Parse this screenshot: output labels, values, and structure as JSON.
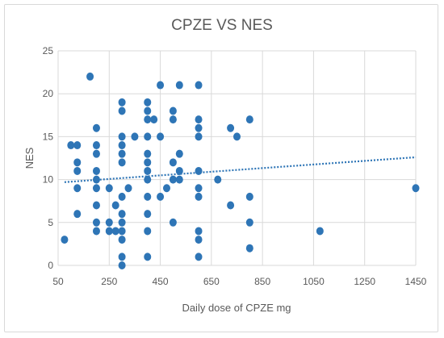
{
  "chart_data": {
    "type": "scatter",
    "title": "CPZE VS NES",
    "xlabel": "Daily dose of CPZE mg",
    "ylabel": "NES",
    "x_ticks": [
      50,
      250,
      450,
      650,
      850,
      1050,
      1250,
      1450
    ],
    "y_ticks": [
      0,
      5,
      10,
      15,
      20,
      25
    ],
    "xlim": [
      50,
      1450
    ],
    "ylim": [
      0,
      25
    ],
    "grid": true,
    "marker_color": "#2e75b6",
    "trendline": {
      "type": "linear",
      "color": "#2e75b6",
      "style": "dotted",
      "x": [
        75,
        1450
      ],
      "y": [
        9.7,
        12.6
      ]
    },
    "points": [
      [
        75,
        3
      ],
      [
        100,
        14
      ],
      [
        125,
        14
      ],
      [
        125,
        12
      ],
      [
        125,
        11
      ],
      [
        125,
        9
      ],
      [
        125,
        6
      ],
      [
        175,
        22
      ],
      [
        200,
        16
      ],
      [
        200,
        14
      ],
      [
        200,
        13
      ],
      [
        200,
        11
      ],
      [
        200,
        10
      ],
      [
        200,
        9
      ],
      [
        200,
        7
      ],
      [
        200,
        5
      ],
      [
        200,
        4
      ],
      [
        250,
        9
      ],
      [
        250,
        5
      ],
      [
        250,
        4
      ],
      [
        275,
        7
      ],
      [
        275,
        4
      ],
      [
        300,
        19
      ],
      [
        300,
        18
      ],
      [
        300,
        15
      ],
      [
        300,
        14
      ],
      [
        300,
        13
      ],
      [
        300,
        12
      ],
      [
        300,
        8
      ],
      [
        300,
        6
      ],
      [
        300,
        5
      ],
      [
        300,
        4
      ],
      [
        300,
        3
      ],
      [
        300,
        1
      ],
      [
        300,
        0
      ],
      [
        325,
        9
      ],
      [
        350,
        15
      ],
      [
        400,
        19
      ],
      [
        400,
        18
      ],
      [
        400,
        17
      ],
      [
        400,
        15
      ],
      [
        400,
        13
      ],
      [
        400,
        12
      ],
      [
        400,
        11
      ],
      [
        400,
        10
      ],
      [
        400,
        8
      ],
      [
        400,
        6
      ],
      [
        400,
        4
      ],
      [
        400,
        1
      ],
      [
        425,
        17
      ],
      [
        450,
        21
      ],
      [
        450,
        15
      ],
      [
        450,
        8
      ],
      [
        475,
        9
      ],
      [
        500,
        18
      ],
      [
        500,
        17
      ],
      [
        500,
        12
      ],
      [
        500,
        10
      ],
      [
        500,
        5
      ],
      [
        525,
        21
      ],
      [
        525,
        13
      ],
      [
        525,
        11
      ],
      [
        525,
        10
      ],
      [
        600,
        21
      ],
      [
        600,
        17
      ],
      [
        600,
        16
      ],
      [
        600,
        15
      ],
      [
        600,
        11
      ],
      [
        600,
        9
      ],
      [
        600,
        8
      ],
      [
        600,
        4
      ],
      [
        600,
        3
      ],
      [
        600,
        1
      ],
      [
        675,
        10
      ],
      [
        725,
        16
      ],
      [
        725,
        7
      ],
      [
        750,
        15
      ],
      [
        800,
        17
      ],
      [
        800,
        8
      ],
      [
        800,
        5
      ],
      [
        800,
        2
      ],
      [
        1075,
        4
      ],
      [
        1450,
        9
      ]
    ]
  }
}
